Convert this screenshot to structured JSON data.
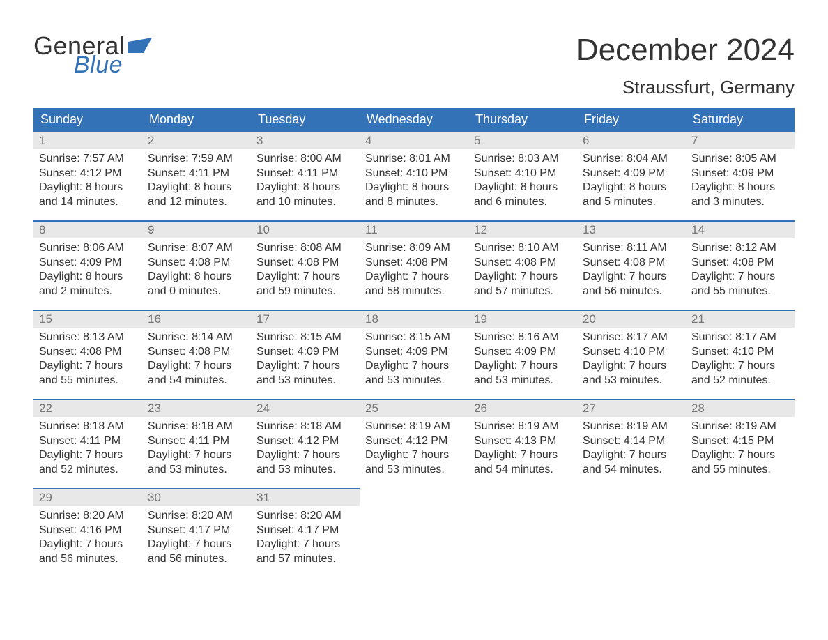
{
  "colors": {
    "brand_blue": "#3472b8",
    "header_text": "#ffffff",
    "daynum_bg": "#e8e8e8",
    "daynum_text": "#777777",
    "body_text": "#333333",
    "page_bg": "#ffffff"
  },
  "fonts": {
    "family": "Arial, Helvetica, sans-serif",
    "title_month_size_pt": 33,
    "title_location_size_pt": 20,
    "header_size_pt": 14,
    "daynum_size_pt": 13,
    "body_size_pt": 12
  },
  "logo": {
    "word1": "General",
    "word2": "Blue"
  },
  "title": {
    "month": "December 2024",
    "location": "Straussfurt, Germany"
  },
  "weekdays": [
    "Sunday",
    "Monday",
    "Tuesday",
    "Wednesday",
    "Thursday",
    "Friday",
    "Saturday"
  ],
  "weeks": [
    [
      {
        "day": "1",
        "sunrise": "Sunrise: 7:57 AM",
        "sunset": "Sunset: 4:12 PM",
        "daylight1": "Daylight: 8 hours",
        "daylight2": "and 14 minutes."
      },
      {
        "day": "2",
        "sunrise": "Sunrise: 7:59 AM",
        "sunset": "Sunset: 4:11 PM",
        "daylight1": "Daylight: 8 hours",
        "daylight2": "and 12 minutes."
      },
      {
        "day": "3",
        "sunrise": "Sunrise: 8:00 AM",
        "sunset": "Sunset: 4:11 PM",
        "daylight1": "Daylight: 8 hours",
        "daylight2": "and 10 minutes."
      },
      {
        "day": "4",
        "sunrise": "Sunrise: 8:01 AM",
        "sunset": "Sunset: 4:10 PM",
        "daylight1": "Daylight: 8 hours",
        "daylight2": "and 8 minutes."
      },
      {
        "day": "5",
        "sunrise": "Sunrise: 8:03 AM",
        "sunset": "Sunset: 4:10 PM",
        "daylight1": "Daylight: 8 hours",
        "daylight2": "and 6 minutes."
      },
      {
        "day": "6",
        "sunrise": "Sunrise: 8:04 AM",
        "sunset": "Sunset: 4:09 PM",
        "daylight1": "Daylight: 8 hours",
        "daylight2": "and 5 minutes."
      },
      {
        "day": "7",
        "sunrise": "Sunrise: 8:05 AM",
        "sunset": "Sunset: 4:09 PM",
        "daylight1": "Daylight: 8 hours",
        "daylight2": "and 3 minutes."
      }
    ],
    [
      {
        "day": "8",
        "sunrise": "Sunrise: 8:06 AM",
        "sunset": "Sunset: 4:09 PM",
        "daylight1": "Daylight: 8 hours",
        "daylight2": "and 2 minutes."
      },
      {
        "day": "9",
        "sunrise": "Sunrise: 8:07 AM",
        "sunset": "Sunset: 4:08 PM",
        "daylight1": "Daylight: 8 hours",
        "daylight2": "and 0 minutes."
      },
      {
        "day": "10",
        "sunrise": "Sunrise: 8:08 AM",
        "sunset": "Sunset: 4:08 PM",
        "daylight1": "Daylight: 7 hours",
        "daylight2": "and 59 minutes."
      },
      {
        "day": "11",
        "sunrise": "Sunrise: 8:09 AM",
        "sunset": "Sunset: 4:08 PM",
        "daylight1": "Daylight: 7 hours",
        "daylight2": "and 58 minutes."
      },
      {
        "day": "12",
        "sunrise": "Sunrise: 8:10 AM",
        "sunset": "Sunset: 4:08 PM",
        "daylight1": "Daylight: 7 hours",
        "daylight2": "and 57 minutes."
      },
      {
        "day": "13",
        "sunrise": "Sunrise: 8:11 AM",
        "sunset": "Sunset: 4:08 PM",
        "daylight1": "Daylight: 7 hours",
        "daylight2": "and 56 minutes."
      },
      {
        "day": "14",
        "sunrise": "Sunrise: 8:12 AM",
        "sunset": "Sunset: 4:08 PM",
        "daylight1": "Daylight: 7 hours",
        "daylight2": "and 55 minutes."
      }
    ],
    [
      {
        "day": "15",
        "sunrise": "Sunrise: 8:13 AM",
        "sunset": "Sunset: 4:08 PM",
        "daylight1": "Daylight: 7 hours",
        "daylight2": "and 55 minutes."
      },
      {
        "day": "16",
        "sunrise": "Sunrise: 8:14 AM",
        "sunset": "Sunset: 4:08 PM",
        "daylight1": "Daylight: 7 hours",
        "daylight2": "and 54 minutes."
      },
      {
        "day": "17",
        "sunrise": "Sunrise: 8:15 AM",
        "sunset": "Sunset: 4:09 PM",
        "daylight1": "Daylight: 7 hours",
        "daylight2": "and 53 minutes."
      },
      {
        "day": "18",
        "sunrise": "Sunrise: 8:15 AM",
        "sunset": "Sunset: 4:09 PM",
        "daylight1": "Daylight: 7 hours",
        "daylight2": "and 53 minutes."
      },
      {
        "day": "19",
        "sunrise": "Sunrise: 8:16 AM",
        "sunset": "Sunset: 4:09 PM",
        "daylight1": "Daylight: 7 hours",
        "daylight2": "and 53 minutes."
      },
      {
        "day": "20",
        "sunrise": "Sunrise: 8:17 AM",
        "sunset": "Sunset: 4:10 PM",
        "daylight1": "Daylight: 7 hours",
        "daylight2": "and 53 minutes."
      },
      {
        "day": "21",
        "sunrise": "Sunrise: 8:17 AM",
        "sunset": "Sunset: 4:10 PM",
        "daylight1": "Daylight: 7 hours",
        "daylight2": "and 52 minutes."
      }
    ],
    [
      {
        "day": "22",
        "sunrise": "Sunrise: 8:18 AM",
        "sunset": "Sunset: 4:11 PM",
        "daylight1": "Daylight: 7 hours",
        "daylight2": "and 52 minutes."
      },
      {
        "day": "23",
        "sunrise": "Sunrise: 8:18 AM",
        "sunset": "Sunset: 4:11 PM",
        "daylight1": "Daylight: 7 hours",
        "daylight2": "and 53 minutes."
      },
      {
        "day": "24",
        "sunrise": "Sunrise: 8:18 AM",
        "sunset": "Sunset: 4:12 PM",
        "daylight1": "Daylight: 7 hours",
        "daylight2": "and 53 minutes."
      },
      {
        "day": "25",
        "sunrise": "Sunrise: 8:19 AM",
        "sunset": "Sunset: 4:12 PM",
        "daylight1": "Daylight: 7 hours",
        "daylight2": "and 53 minutes."
      },
      {
        "day": "26",
        "sunrise": "Sunrise: 8:19 AM",
        "sunset": "Sunset: 4:13 PM",
        "daylight1": "Daylight: 7 hours",
        "daylight2": "and 54 minutes."
      },
      {
        "day": "27",
        "sunrise": "Sunrise: 8:19 AM",
        "sunset": "Sunset: 4:14 PM",
        "daylight1": "Daylight: 7 hours",
        "daylight2": "and 54 minutes."
      },
      {
        "day": "28",
        "sunrise": "Sunrise: 8:19 AM",
        "sunset": "Sunset: 4:15 PM",
        "daylight1": "Daylight: 7 hours",
        "daylight2": "and 55 minutes."
      }
    ],
    [
      {
        "day": "29",
        "sunrise": "Sunrise: 8:20 AM",
        "sunset": "Sunset: 4:16 PM",
        "daylight1": "Daylight: 7 hours",
        "daylight2": "and 56 minutes."
      },
      {
        "day": "30",
        "sunrise": "Sunrise: 8:20 AM",
        "sunset": "Sunset: 4:17 PM",
        "daylight1": "Daylight: 7 hours",
        "daylight2": "and 56 minutes."
      },
      {
        "day": "31",
        "sunrise": "Sunrise: 8:20 AM",
        "sunset": "Sunset: 4:17 PM",
        "daylight1": "Daylight: 7 hours",
        "daylight2": "and 57 minutes."
      },
      null,
      null,
      null,
      null
    ]
  ]
}
